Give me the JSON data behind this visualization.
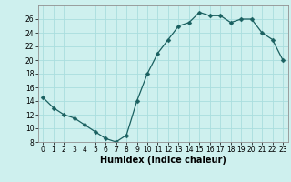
{
  "x": [
    0,
    1,
    2,
    3,
    4,
    5,
    6,
    7,
    8,
    9,
    10,
    11,
    12,
    13,
    14,
    15,
    16,
    17,
    18,
    19,
    20,
    21,
    22,
    23
  ],
  "y": [
    14.5,
    13,
    12,
    11.5,
    10.5,
    9.5,
    8.5,
    8,
    9,
    14,
    18,
    21,
    23,
    25,
    25.5,
    27,
    26.5,
    26.5,
    25.5,
    26,
    26,
    24,
    23,
    20
  ],
  "line_color": "#1a6060",
  "marker": "D",
  "marker_size": 2.5,
  "bg_color": "#cef0ee",
  "grid_color": "#aadede",
  "xlabel": "Humidex (Indice chaleur)",
  "ylim": [
    8,
    28
  ],
  "xlim": [
    -0.5,
    23.5
  ],
  "yticks": [
    8,
    10,
    12,
    14,
    16,
    18,
    20,
    22,
    24,
    26
  ],
  "xticks": [
    0,
    1,
    2,
    3,
    4,
    5,
    6,
    7,
    8,
    9,
    10,
    11,
    12,
    13,
    14,
    15,
    16,
    17,
    18,
    19,
    20,
    21,
    22,
    23
  ],
  "xlabel_fontsize": 7,
  "tick_fontsize": 5.5
}
